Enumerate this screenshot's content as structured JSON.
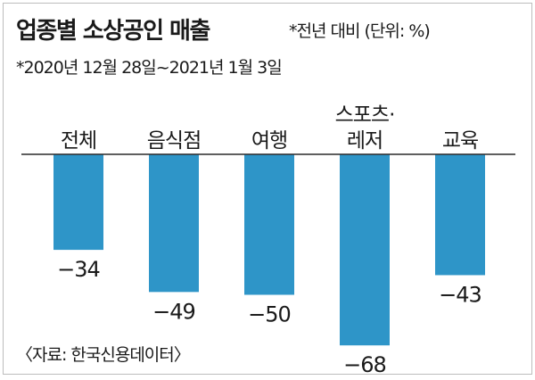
{
  "title": "업종별 소상공인 매출",
  "unit_note": "*전년 대비 (단위: %)",
  "period_note": "*2020년 12월 28일~2021년 1월 3일",
  "source": "〈자료: 한국신용데이터〉",
  "colors": {
    "bar": "#2e95c8",
    "baseline": "#2a2a2a"
  },
  "chart_data": {
    "type": "bar",
    "categories": [
      "전체",
      "음식점",
      "여행",
      "스포츠·레저",
      "교육"
    ],
    "category_lines": [
      [
        "전체"
      ],
      [
        "음식점"
      ],
      [
        "여행"
      ],
      [
        "스포츠·",
        "레저"
      ],
      [
        "교육"
      ]
    ],
    "values": [
      -34,
      -49,
      -50,
      -68,
      -43
    ],
    "value_labels": [
      "−34",
      "−49",
      "−50",
      "−68",
      "−43"
    ],
    "ylim": [
      -70,
      0
    ],
    "grid": false,
    "legend": "none"
  }
}
